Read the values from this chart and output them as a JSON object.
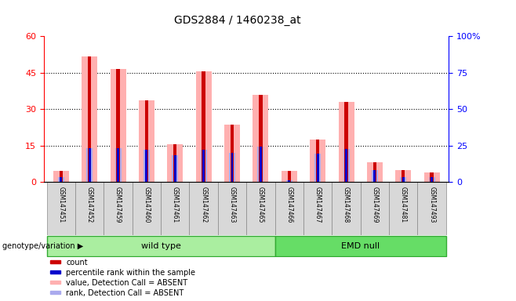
{
  "title": "GDS2884 / 1460238_at",
  "samples": [
    "GSM147451",
    "GSM147452",
    "GSM147459",
    "GSM147460",
    "GSM147461",
    "GSM147462",
    "GSM147463",
    "GSM147465",
    "GSM147466",
    "GSM147467",
    "GSM147468",
    "GSM147469",
    "GSM147481",
    "GSM147493"
  ],
  "count_values": [
    4.5,
    51.5,
    46.5,
    33.5,
    15.5,
    45.5,
    23.5,
    36.0,
    4.5,
    17.5,
    33.0,
    8.0,
    5.0,
    4.0
  ],
  "rank_values": [
    3.5,
    23.5,
    23.5,
    22.0,
    18.5,
    22.0,
    20.0,
    24.5,
    1.5,
    19.5,
    22.5,
    8.0,
    3.5,
    3.5
  ],
  "absent_value": [
    4.5,
    51.5,
    46.5,
    33.5,
    15.5,
    45.5,
    23.5,
    36.0,
    4.5,
    17.5,
    33.0,
    8.0,
    5.0,
    4.0
  ],
  "absent_rank": [
    3.5,
    23.5,
    23.5,
    22.0,
    18.5,
    22.0,
    20.0,
    24.5,
    1.5,
    19.5,
    22.5,
    8.0,
    3.5,
    3.5
  ],
  "groups": [
    {
      "name": "wild type",
      "start": 0,
      "end": 7
    },
    {
      "name": "EMD null",
      "start": 8,
      "end": 13
    }
  ],
  "ylim_left": [
    0,
    60
  ],
  "ylim_right": [
    0,
    100
  ],
  "yticks_left": [
    0,
    15,
    30,
    45,
    60
  ],
  "yticks_right": [
    0,
    25,
    50,
    75,
    100
  ],
  "ytick_labels_left": [
    "0",
    "15",
    "30",
    "45",
    "60"
  ],
  "ytick_labels_right": [
    "0",
    "25",
    "50",
    "75",
    "100%"
  ],
  "color_count": "#cc0000",
  "color_rank": "#0000cc",
  "color_absent_value": "#ffb0b0",
  "color_absent_rank": "#aaaaee",
  "color_group_wt": "#aaeea0",
  "color_group_emd": "#66dd66",
  "color_sample_bg": "#d8d8d8",
  "legend_items": [
    "count",
    "percentile rank within the sample",
    "value, Detection Call = ABSENT",
    "rank, Detection Call = ABSENT"
  ],
  "legend_colors": [
    "#cc0000",
    "#0000cc",
    "#ffb0b0",
    "#aaaaee"
  ]
}
